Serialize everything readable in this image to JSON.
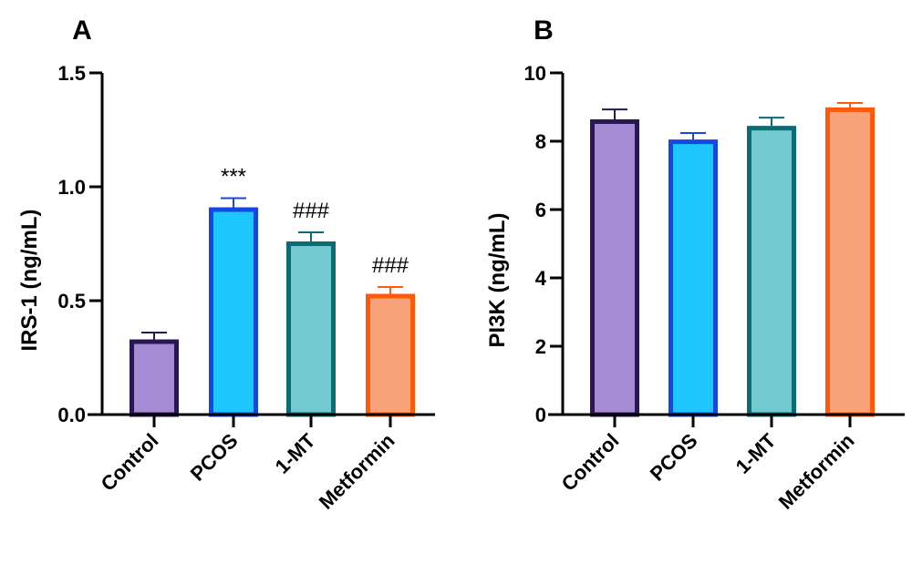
{
  "chart_data": [
    {
      "type": "bar",
      "panel": "A",
      "title": "",
      "xlabel": "",
      "ylabel": "IRS-1 (ng/mL)",
      "ylim": [
        0,
        1.5
      ],
      "yticks": [
        "0.0",
        "0.5",
        "1.0",
        "1.5"
      ],
      "ytick_values": [
        0,
        0.5,
        1.0,
        1.5
      ],
      "categories": [
        "Control",
        "PCOS",
        "1-MT",
        "Metformin"
      ],
      "values": [
        0.33,
        0.91,
        0.76,
        0.53
      ],
      "error": [
        0.03,
        0.04,
        0.04,
        0.03
      ],
      "annotations": [
        "",
        "***",
        "###",
        "###"
      ],
      "fill_colors": [
        "#a48bd3",
        "#1dc6fc",
        "#72c9cf",
        "#f9a37b"
      ],
      "edge_colors": [
        "#2b1654",
        "#1548e0",
        "#0f6b73",
        "#ff5a0a"
      ],
      "grid": false,
      "legend": "none"
    },
    {
      "type": "bar",
      "panel": "B",
      "title": "",
      "xlabel": "",
      "ylabel": "PI3K (ng/mL)",
      "ylim": [
        0,
        10
      ],
      "yticks": [
        "0",
        "2",
        "4",
        "6",
        "8",
        "10"
      ],
      "ytick_values": [
        0,
        2,
        4,
        6,
        8,
        10
      ],
      "categories": [
        "Control",
        "PCOS",
        "1-MT",
        "Metformin"
      ],
      "values": [
        8.64,
        8.05,
        8.45,
        8.99
      ],
      "error": [
        0.29,
        0.19,
        0.24,
        0.13
      ],
      "annotations": [
        "",
        "",
        "",
        ""
      ],
      "fill_colors": [
        "#a48bd3",
        "#1dc6fc",
        "#72c9cf",
        "#f9a37b"
      ],
      "edge_colors": [
        "#2b1654",
        "#1548e0",
        "#0f6b73",
        "#ff5a0a"
      ],
      "grid": false,
      "legend": "none"
    }
  ]
}
